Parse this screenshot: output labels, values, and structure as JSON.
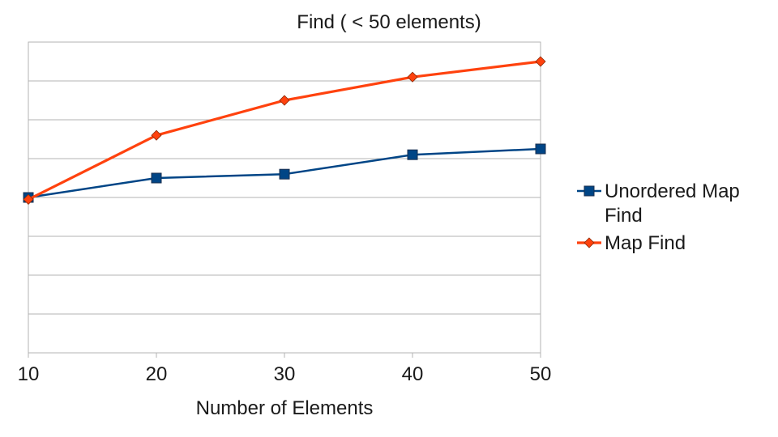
{
  "chart_data": {
    "type": "line",
    "title": "Find ( < 50 elements)",
    "xlabel": "Number of Elements",
    "ylabel": "",
    "x": [
      10,
      20,
      30,
      40,
      50
    ],
    "xlim": [
      10,
      50
    ],
    "ylim": [
      0,
      8
    ],
    "y_gridlines": 8,
    "grid": true,
    "legend_position": "right",
    "series": [
      {
        "name": "Unordered Map Find",
        "name_lines": [
          "Unordered Map",
          "Find"
        ],
        "marker": "square",
        "color": "#004586",
        "values": [
          4.0,
          4.5,
          4.6,
          5.1,
          5.25
        ]
      },
      {
        "name": "Map Find",
        "name_lines": [
          "Map Find"
        ],
        "marker": "diamond",
        "color": "#ff420e",
        "values": [
          3.95,
          5.6,
          6.5,
          7.1,
          7.5
        ]
      }
    ]
  }
}
